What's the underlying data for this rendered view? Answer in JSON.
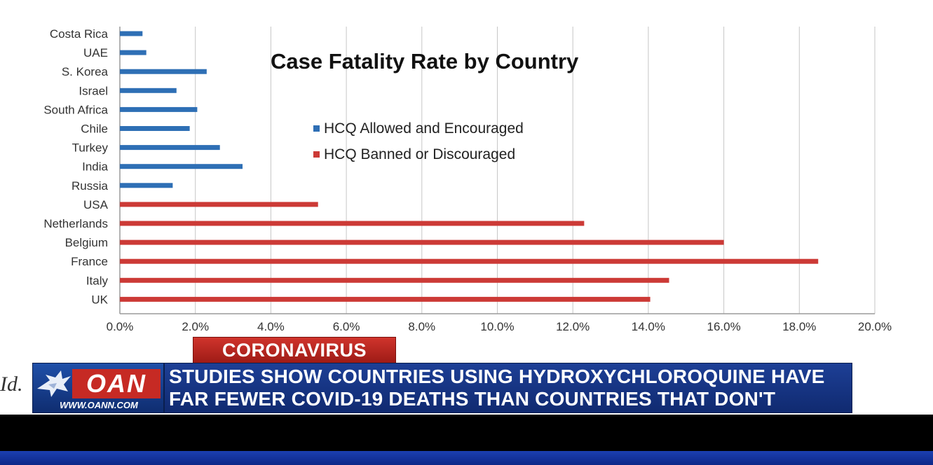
{
  "chart_data": {
    "type": "bar",
    "orientation": "horizontal",
    "title": "Case Fatality Rate by Country",
    "categories": [
      "Costa Rica",
      "UAE",
      "S. Korea",
      "Israel",
      "South Africa",
      "Chile",
      "Turkey",
      "India",
      "Russia",
      "USA",
      "Netherlands",
      "Belgium",
      "France",
      "Italy",
      "UK"
    ],
    "series": [
      {
        "name": "HCQ Allowed and Encouraged",
        "color": "#2e6fb5",
        "values": [
          0.6,
          0.7,
          2.3,
          1.5,
          2.05,
          1.85,
          2.65,
          3.25,
          1.4,
          null,
          null,
          null,
          null,
          null,
          null
        ]
      },
      {
        "name": "HCQ Banned or Discouraged",
        "color": "#cc3a36",
        "values": [
          null,
          null,
          null,
          null,
          null,
          null,
          null,
          null,
          null,
          5.25,
          12.3,
          16.0,
          18.5,
          14.55,
          14.05
        ]
      }
    ],
    "x_ticks": [
      "0.0%",
      "2.0%",
      "4.0%",
      "6.0%",
      "8.0%",
      "10.0%",
      "12.0%",
      "14.0%",
      "16.0%",
      "18.0%",
      "20.0%"
    ],
    "xlim": [
      0,
      20
    ],
    "grid": "vertical",
    "legend_position": "center-top"
  },
  "banner": {
    "topic": "CORONAVIRUS",
    "logo_text": "OAN",
    "logo_url": "WWW.OANN.COM",
    "headline_line1": "STUDIES SHOW COUNTRIES USING HYDROXYCHLOROQUINE HAVE",
    "headline_line2": "FAR FEWER COVID-19 DEATHS THAN COUNTRIES THAT DON'T"
  },
  "edge_text": "Id."
}
